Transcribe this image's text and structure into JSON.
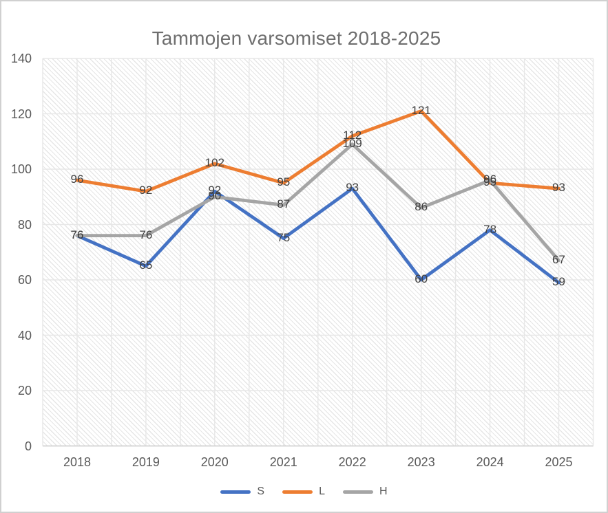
{
  "chart_data": {
    "type": "line",
    "title": "Tammojen varsomiset 2018-2025",
    "categories": [
      "2018",
      "2019",
      "2020",
      "2021",
      "2022",
      "2023",
      "2024",
      "2025"
    ],
    "series": [
      {
        "name": "S",
        "color": "#4472C4",
        "values": [
          76,
          65,
          92,
          75,
          93,
          60,
          78,
          59
        ]
      },
      {
        "name": "L",
        "color": "#ED7D31",
        "values": [
          96,
          92,
          102,
          95,
          112,
          121,
          95,
          93
        ]
      },
      {
        "name": "H",
        "color": "#A5A5A5",
        "values": [
          76,
          76,
          90,
          87,
          109,
          86,
          96,
          67
        ]
      }
    ],
    "xlabel": "",
    "ylabel": "",
    "ylim": [
      0,
      140
    ],
    "ytick_step": 20,
    "yticks": [
      0,
      20,
      40,
      60,
      80,
      100,
      120,
      140
    ],
    "grid": "horizontal major on; vertical gridlines at every half category",
    "plot_area_fill": "light diagonal hatch pattern",
    "data_labels": "centered on points",
    "legend_position": "bottom-center"
  },
  "styles": {
    "background": "#ffffff",
    "border_color": "#d0d0d0",
    "title_color": "#6e6e6e",
    "axis_label_color": "#595959",
    "data_label_color": "#404040",
    "legend_label_color": "#595959",
    "gridline_color": "#e7e7e7",
    "axis_line_color": "#d2d2d2",
    "plot_hatch_color": "#dcdcdc"
  }
}
